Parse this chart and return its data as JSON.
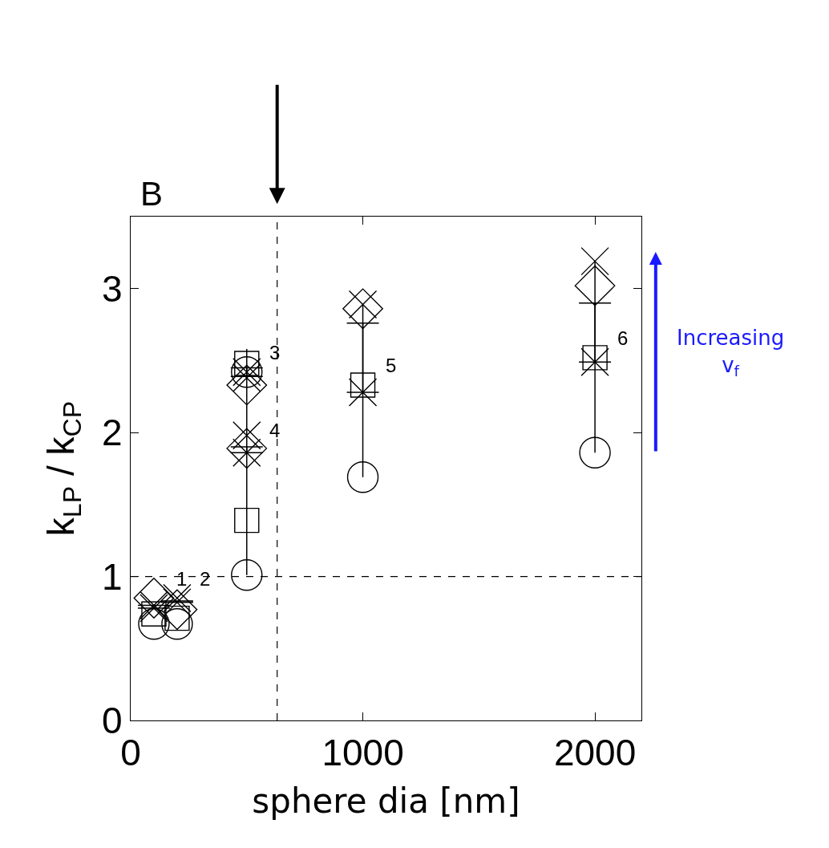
{
  "chart_data": {
    "type": "scatter",
    "xlabel": "sphere dia [nm]",
    "ylabel": "k$_{LP}$ / k$_{CP}$",
    "xlim": [
      0,
      2200
    ],
    "xticks": [
      0,
      1000,
      2000
    ],
    "ylim": [
      0,
      3.5
    ],
    "yticks": [
      0,
      1,
      2,
      3
    ],
    "series": [
      {
        "type": "line",
        "marker": "none",
        "color": "#000000",
        "x": [
          500,
          500,
          null,
          1000,
          1000,
          null,
          2000,
          2000
        ],
        "values": [
          1.01,
          2.58,
          null,
          1.69,
          2.89,
          null,
          1.86,
          3.19
        ]
      },
      {
        "color": "#000000",
        "marker": "circle",
        "x": [
          100,
          200,
          500,
          500,
          1000,
          2000
        ],
        "values": [
          0.67,
          0.67,
          2.42,
          1.01,
          1.69,
          1.86
        ]
      },
      {
        "color": "#000000",
        "marker": "square",
        "x": [
          100,
          200,
          500,
          500,
          1000,
          2000
        ],
        "values": [
          0.74,
          0.71,
          2.48,
          1.39,
          2.33,
          2.52
        ]
      },
      {
        "color": "#000000",
        "marker": "diamond",
        "x": [
          100,
          200,
          500,
          500,
          1000,
          2000
        ],
        "values": [
          0.85,
          0.77,
          2.33,
          1.89,
          2.86,
          3.02
        ]
      },
      {
        "color": "#000000",
        "x": [
          100,
          200,
          500,
          500,
          1000,
          2000
        ],
        "values": [
          0.78,
          0.82,
          2.42,
          1.86,
          2.28,
          2.49
        ],
        "errors": [
          [
            0.78,
            0.8
          ],
          [
            0.82,
            0.83
          ],
          [
            2.39,
            2.45
          ],
          [
            1.86,
            1.9
          ],
          [
            2.28,
            2.76
          ],
          [
            2.49,
            2.9
          ]
        ]
      },
      {
        "color": "#000000",
        "x": [
          100,
          200,
          500,
          500,
          1000,
          2000
        ],
        "values": [
          0.8,
          0.85,
          2.38,
          1.98,
          2.89,
          3.19
        ]
      }
    ],
    "ref_lines": [
      {
        "axis": "y",
        "value": 1,
        "line_style": "dashed",
        "color": "#000000"
      },
      {
        "axis": "x",
        "value": 631,
        "line_style": "dashed",
        "color": "#000000"
      }
    ],
    "annotations": [
      {
        "text": "1",
        "x": 100,
        "y": 0.85
      },
      {
        "text": "2",
        "x": 200,
        "y": 0.85
      },
      {
        "text": "3",
        "x": 500,
        "y": 2.42
      },
      {
        "text": "4",
        "x": 500,
        "y": 1.88
      },
      {
        "text": "5",
        "x": 1000,
        "y": 2.33
      },
      {
        "text": "6",
        "x": 2000,
        "y": 2.52
      },
      "B",
      "Increasing\nv$_{f}$"
    ]
  }
}
